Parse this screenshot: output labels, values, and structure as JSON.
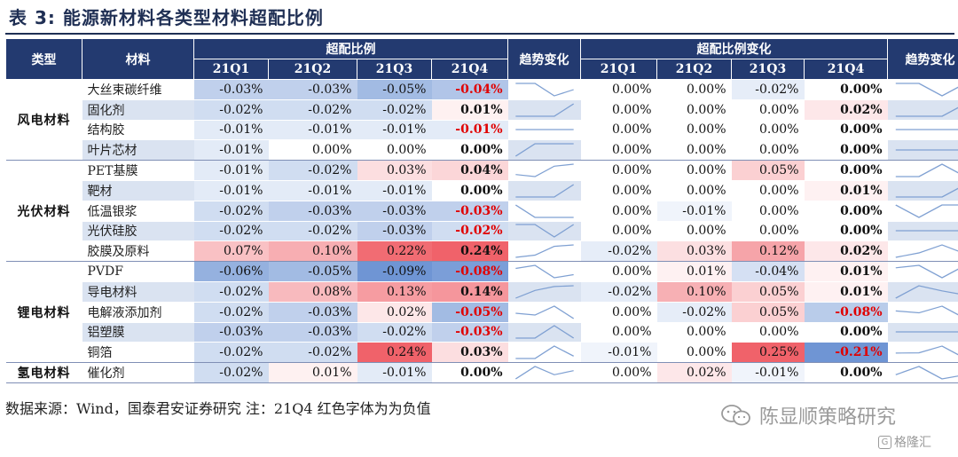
{
  "title": "表 3:  能源新材料各类型材料超配比例",
  "headers": {
    "type": "类型",
    "material": "材料",
    "ratio_group": "超配比例",
    "trend": "趋势变化",
    "change_group": "超配比例变化",
    "quarters": [
      "21Q1",
      "21Q2",
      "21Q3",
      "21Q4"
    ]
  },
  "groups": [
    {
      "name": "风电材料",
      "rows": [
        {
          "material": "大丝束碳纤维",
          "ratio": [
            "-0.03%",
            "-0.03%",
            "-0.05%",
            "-0.04%"
          ],
          "change": [
            "0.00%",
            "0.00%",
            "-0.02%",
            "0.00%"
          ]
        },
        {
          "material": "固化剂",
          "ratio": [
            "-0.02%",
            "-0.02%",
            "-0.02%",
            "0.01%"
          ],
          "change": [
            "0.00%",
            "0.00%",
            "0.00%",
            "0.02%"
          ]
        },
        {
          "material": "结构胶",
          "ratio": [
            "-0.01%",
            "-0.01%",
            "-0.01%",
            "-0.01%"
          ],
          "change": [
            "0.00%",
            "0.00%",
            "0.00%",
            "0.00%"
          ]
        },
        {
          "material": "叶片芯材",
          "ratio": [
            "-0.01%",
            "0.00%",
            "0.00%",
            "0.00%"
          ],
          "change": [
            "0.00%",
            "0.00%",
            "0.00%",
            "0.00%"
          ]
        }
      ]
    },
    {
      "name": "光伏材料",
      "rows": [
        {
          "material": "PET基膜",
          "ratio": [
            "-0.01%",
            "-0.02%",
            "0.03%",
            "0.04%"
          ],
          "change": [
            "0.00%",
            "0.00%",
            "0.05%",
            "0.00%"
          ]
        },
        {
          "material": "靶材",
          "ratio": [
            "-0.01%",
            "-0.01%",
            "-0.01%",
            "0.00%"
          ],
          "change": [
            "0.00%",
            "0.00%",
            "0.00%",
            "0.01%"
          ]
        },
        {
          "material": "低温银浆",
          "ratio": [
            "-0.02%",
            "-0.03%",
            "-0.03%",
            "-0.03%"
          ],
          "change": [
            "0.00%",
            "-0.01%",
            "0.00%",
            "0.00%"
          ]
        },
        {
          "material": "光伏硅胶",
          "ratio": [
            "-0.02%",
            "-0.02%",
            "-0.03%",
            "-0.02%"
          ],
          "change": [
            "0.00%",
            "0.00%",
            "0.00%",
            "0.00%"
          ]
        },
        {
          "material": "胶膜及原料",
          "ratio": [
            "0.07%",
            "0.10%",
            "0.22%",
            "0.24%"
          ],
          "change": [
            "-0.02%",
            "0.03%",
            "0.12%",
            "0.02%"
          ]
        }
      ]
    },
    {
      "name": "锂电材料",
      "rows": [
        {
          "material": "PVDF",
          "ratio": [
            "-0.06%",
            "-0.05%",
            "-0.09%",
            "-0.08%"
          ],
          "change": [
            "0.00%",
            "0.01%",
            "-0.04%",
            "0.01%"
          ]
        },
        {
          "material": "导电材料",
          "ratio": [
            "-0.02%",
            "0.08%",
            "0.13%",
            "0.14%"
          ],
          "change": [
            "-0.02%",
            "0.10%",
            "0.05%",
            "0.01%"
          ]
        },
        {
          "material": "电解液添加剂",
          "ratio": [
            "-0.02%",
            "-0.03%",
            "0.02%",
            "-0.05%"
          ],
          "change": [
            "0.00%",
            "-0.02%",
            "0.05%",
            "-0.08%"
          ]
        },
        {
          "material": "铝塑膜",
          "ratio": [
            "-0.03%",
            "-0.03%",
            "-0.02%",
            "-0.03%"
          ],
          "change": [
            "0.00%",
            "0.00%",
            "0.00%",
            "0.00%"
          ]
        },
        {
          "material": "铜箔",
          "ratio": [
            "-0.02%",
            "-0.02%",
            "0.24%",
            "0.03%"
          ],
          "change": [
            "-0.01%",
            "0.00%",
            "0.25%",
            "-0.21%"
          ]
        }
      ]
    },
    {
      "name": "氢电材料",
      "rows": [
        {
          "material": "催化剂",
          "ratio": [
            "-0.02%",
            "0.01%",
            "-0.01%",
            "0.00%"
          ],
          "change": [
            "0.00%",
            "0.02%",
            "-0.01%",
            "0.00%"
          ]
        }
      ]
    }
  ],
  "source_note": "数据来源：Wind，国泰君安证券研究 注：21Q4 红色字体为为负值",
  "watermark": "陈显顺策略研究",
  "watermark2": "格隆汇",
  "colors": {
    "header_bg": "#233a70",
    "stripe": "#dae3f1",
    "positive_max": "#f0626a",
    "negative_max": "#6f95d4",
    "neutral": "#ffffff",
    "negative_text": "#e00000",
    "sparkline": "#7fa0d2"
  }
}
